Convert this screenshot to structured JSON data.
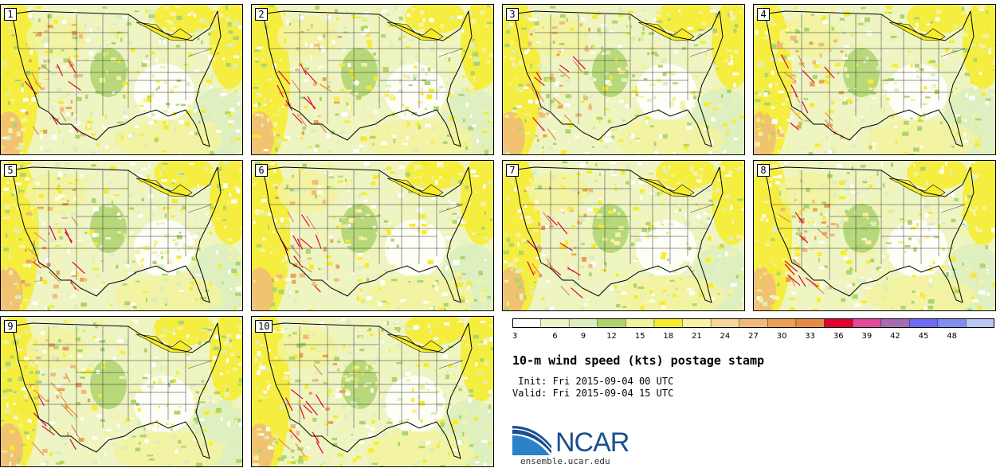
{
  "stamps": [
    "1",
    "2",
    "3",
    "4",
    "5",
    "6",
    "7",
    "8",
    "9",
    "10"
  ],
  "colorbar": {
    "ticks": [
      "3",
      "6",
      "9",
      "12",
      "15",
      "18",
      "21",
      "24",
      "27",
      "30",
      "33",
      "36",
      "39",
      "42",
      "45",
      "48"
    ],
    "colors": [
      "#ffffff",
      "#ecf5c6",
      "#dceec0",
      "#aed46e",
      "#f2f39f",
      "#f6ec2a",
      "#fbf0a3",
      "#f5d79c",
      "#f0bb7a",
      "#e9a255",
      "#e78a45",
      "#e3002e",
      "#e1479b",
      "#a56db0",
      "#6f6bf6",
      "#7f8ff0",
      "#b7c8f3"
    ]
  },
  "title": "10-m wind speed (kts) postage stamp",
  "init": " Init: Fri 2015-09-04 00 UTC",
  "valid": "Valid: Fri 2015-09-04 15 UTC",
  "logo": {
    "name": "NCAR",
    "url": "ensemble.ucar.edu"
  }
}
